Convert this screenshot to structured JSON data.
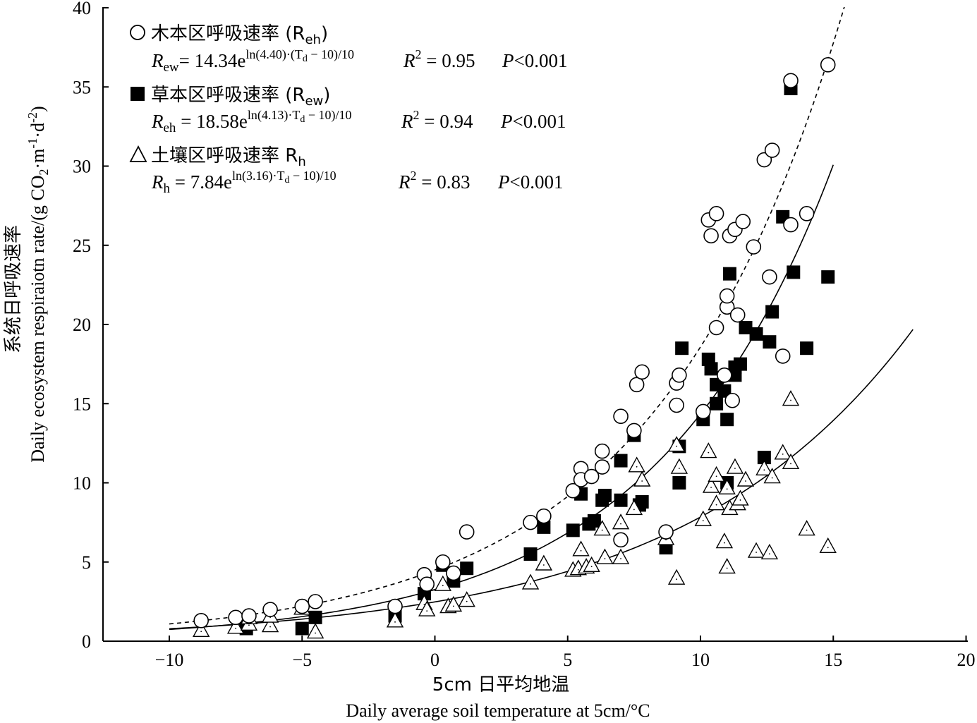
{
  "chart_data": {
    "type": "scatter",
    "xlabel_cn": "5cm 日平均地温",
    "xlabel_en": "Daily average  soil temperature at 5cm/°C",
    "ylabel_cn": "系统日呼吸速率",
    "ylabel_en": "Daily ecosystem respiraiotn rate/(g CO",
    "ylabel_en_sub": "2",
    "ylabel_en_unit1": "·m",
    "ylabel_en_sup1": "-1",
    "ylabel_en_unit2": "·d",
    "ylabel_en_sup2": "-2",
    "ylabel_en_close": ")",
    "xlim": [
      -12.5,
      20
    ],
    "ylim": [
      0,
      40
    ],
    "xticks": [
      -10,
      -5,
      0,
      5,
      10,
      15,
      20
    ],
    "xtick_labels": [
      "−10",
      "−5",
      "0",
      "5",
      "10",
      "15",
      "20"
    ],
    "yticks": [
      0,
      5,
      10,
      15,
      20,
      25,
      30,
      35,
      40
    ],
    "ytick_labels": [
      "0",
      "5",
      "10",
      "15",
      "20",
      "25",
      "30",
      "35",
      "40"
    ],
    "legend": [
      {
        "name": "木本区呼吸速率 (R",
        "name_sub": "eh",
        "name_close": ")",
        "marker": "circle",
        "eq_var": "R",
        "eq_sub": "ew",
        "eq_body": "= 14.34e",
        "eq_sup": "ln(4.40)·(T",
        "eq_sup_sub": "d",
        "eq_sup_tail": " − 10)/10",
        "r2_label": "R",
        "r2_value": " = 0.95",
        "p_label": "P",
        "p_value": "<0.001"
      },
      {
        "name": "草本区呼吸速率 (R",
        "name_sub": "ew",
        "name_close": ")",
        "marker": "square",
        "eq_var": "R",
        "eq_sub": "eh",
        "eq_body": " = 18.58e",
        "eq_sup": "ln(4.13)·T",
        "eq_sup_sub": "d",
        "eq_sup_tail": " − 10)/10",
        "r2_label": "R",
        "r2_value": " = 0.94",
        "p_label": "P",
        "p_value": "<0.001"
      },
      {
        "name": "土壤区呼吸速率 R",
        "name_sub": "h",
        "name_close": "",
        "marker": "triangle",
        "eq_var": "R",
        "eq_sub": "h",
        "eq_body": " = 7.84e",
        "eq_sup": "ln(3.16)·T",
        "eq_sup_sub": "d",
        "eq_sup_tail": " − 10)/10",
        "r2_label": "R",
        "r2_value": " = 0.83",
        "p_label": "P",
        "p_value": "<0.001"
      }
    ],
    "series": [
      {
        "name": "木本区呼吸速率 (Reh)",
        "marker": "circle",
        "fit": {
          "a": 14.34,
          "q10": 4.4,
          "x_range": [
            -10,
            15
          ],
          "style": "solid"
        },
        "points": [
          [
            -8.8,
            1.3
          ],
          [
            -7.5,
            1.5
          ],
          [
            -7.0,
            1.6
          ],
          [
            -6.2,
            2.0
          ],
          [
            -5.0,
            2.2
          ],
          [
            -4.5,
            2.5
          ],
          [
            -1.5,
            2.2
          ],
          [
            -0.4,
            4.2
          ],
          [
            -0.3,
            3.6
          ],
          [
            0.3,
            5.0
          ],
          [
            0.7,
            4.3
          ],
          [
            1.2,
            6.9
          ],
          [
            3.6,
            7.5
          ],
          [
            4.1,
            7.9
          ],
          [
            5.2,
            9.5
          ],
          [
            5.5,
            10.9
          ],
          [
            5.5,
            10.2
          ],
          [
            5.9,
            10.4
          ],
          [
            6.3,
            12.0
          ],
          [
            6.3,
            11.0
          ],
          [
            7.0,
            14.2
          ],
          [
            7.0,
            6.4
          ],
          [
            7.5,
            13.3
          ],
          [
            7.6,
            16.2
          ],
          [
            7.8,
            17.0
          ],
          [
            8.7,
            6.9
          ],
          [
            9.1,
            16.3
          ],
          [
            9.1,
            14.9
          ],
          [
            9.2,
            16.8
          ],
          [
            10.1,
            14.5
          ],
          [
            10.3,
            26.6
          ],
          [
            10.4,
            25.6
          ],
          [
            10.6,
            19.8
          ],
          [
            10.6,
            27.0
          ],
          [
            10.9,
            16.8
          ],
          [
            11.0,
            21.1
          ],
          [
            11.0,
            21.8
          ],
          [
            11.1,
            25.6
          ],
          [
            11.2,
            15.2
          ],
          [
            11.3,
            26.0
          ],
          [
            11.4,
            20.6
          ],
          [
            11.6,
            26.5
          ],
          [
            12.0,
            24.9
          ],
          [
            12.4,
            30.4
          ],
          [
            12.6,
            23.0
          ],
          [
            12.7,
            31.0
          ],
          [
            13.1,
            18.0
          ],
          [
            13.4,
            35.4
          ],
          [
            13.4,
            26.3
          ],
          [
            14.0,
            27.0
          ],
          [
            14.8,
            36.4
          ]
        ]
      },
      {
        "name": "草本区呼吸速率 (Rew)",
        "marker": "square",
        "fit": {
          "a": 18.58,
          "q10": 4.13,
          "x_range": [
            -10,
            16
          ],
          "style": "dashed"
        },
        "points": [
          [
            -7.1,
            0.8
          ],
          [
            -5.0,
            0.8
          ],
          [
            -4.5,
            1.5
          ],
          [
            -1.5,
            1.6
          ],
          [
            -0.4,
            3.0
          ],
          [
            0.3,
            4.8
          ],
          [
            0.7,
            3.8
          ],
          [
            1.2,
            4.6
          ],
          [
            3.6,
            5.5
          ],
          [
            4.1,
            7.2
          ],
          [
            5.2,
            7.0
          ],
          [
            5.5,
            9.3
          ],
          [
            5.8,
            7.4
          ],
          [
            6.0,
            7.6
          ],
          [
            6.3,
            8.9
          ],
          [
            6.4,
            9.2
          ],
          [
            7.0,
            8.9
          ],
          [
            7.0,
            11.4
          ],
          [
            7.5,
            13.0
          ],
          [
            7.7,
            8.6
          ],
          [
            7.8,
            8.8
          ],
          [
            8.7,
            5.9
          ],
          [
            9.2,
            10.0
          ],
          [
            9.2,
            12.3
          ],
          [
            9.3,
            18.5
          ],
          [
            10.1,
            14.0
          ],
          [
            10.3,
            17.8
          ],
          [
            10.4,
            17.2
          ],
          [
            10.6,
            16.2
          ],
          [
            10.6,
            15.0
          ],
          [
            10.9,
            15.8
          ],
          [
            11.0,
            10.0
          ],
          [
            11.0,
            14.0
          ],
          [
            11.1,
            23.2
          ],
          [
            11.3,
            16.8
          ],
          [
            11.3,
            17.3
          ],
          [
            11.5,
            17.5
          ],
          [
            11.7,
            19.8
          ],
          [
            12.1,
            19.4
          ],
          [
            12.4,
            11.6
          ],
          [
            12.6,
            18.9
          ],
          [
            12.7,
            20.8
          ],
          [
            13.1,
            26.8
          ],
          [
            13.4,
            34.9
          ],
          [
            13.5,
            23.3
          ],
          [
            14.0,
            18.5
          ],
          [
            14.8,
            23.0
          ]
        ]
      },
      {
        "name": "土壤区呼吸速率 Rh",
        "marker": "triangle",
        "fit": {
          "a": 7.84,
          "q10": 3.16,
          "x_range": [
            -10,
            18
          ],
          "style": "solid"
        },
        "points": [
          [
            -8.8,
            0.7
          ],
          [
            -7.5,
            0.9
          ],
          [
            -7.0,
            1.1
          ],
          [
            -7.0,
            1.5
          ],
          [
            -6.2,
            1.0
          ],
          [
            -6.2,
            1.6
          ],
          [
            -5.0,
            2.1
          ],
          [
            -4.5,
            0.6
          ],
          [
            -1.5,
            1.3
          ],
          [
            -0.4,
            2.4
          ],
          [
            -0.3,
            2.0
          ],
          [
            0.3,
            3.6
          ],
          [
            0.5,
            2.2
          ],
          [
            0.7,
            2.3
          ],
          [
            1.2,
            2.6
          ],
          [
            3.6,
            3.7
          ],
          [
            4.1,
            4.9
          ],
          [
            5.2,
            4.5
          ],
          [
            5.4,
            4.6
          ],
          [
            5.5,
            5.8
          ],
          [
            5.7,
            4.7
          ],
          [
            5.9,
            4.8
          ],
          [
            6.3,
            7.1
          ],
          [
            6.4,
            5.3
          ],
          [
            7.0,
            5.3
          ],
          [
            7.0,
            7.5
          ],
          [
            7.5,
            8.4
          ],
          [
            7.6,
            11.1
          ],
          [
            7.8,
            10.2
          ],
          [
            8.7,
            6.5
          ],
          [
            9.1,
            4.0
          ],
          [
            9.1,
            12.4
          ],
          [
            9.2,
            11.0
          ],
          [
            10.1,
            7.7
          ],
          [
            10.3,
            12.0
          ],
          [
            10.4,
            9.8
          ],
          [
            10.6,
            10.5
          ],
          [
            10.6,
            8.7
          ],
          [
            10.9,
            6.3
          ],
          [
            11.0,
            9.7
          ],
          [
            11.0,
            4.7
          ],
          [
            11.1,
            8.4
          ],
          [
            11.3,
            11.0
          ],
          [
            11.4,
            8.7
          ],
          [
            11.5,
            9.0
          ],
          [
            11.7,
            10.2
          ],
          [
            12.1,
            5.7
          ],
          [
            12.4,
            10.9
          ],
          [
            12.6,
            5.6
          ],
          [
            12.7,
            10.4
          ],
          [
            13.1,
            11.9
          ],
          [
            13.4,
            15.3
          ],
          [
            13.4,
            11.3
          ],
          [
            14.0,
            7.1
          ],
          [
            14.8,
            6.0
          ]
        ]
      }
    ]
  }
}
